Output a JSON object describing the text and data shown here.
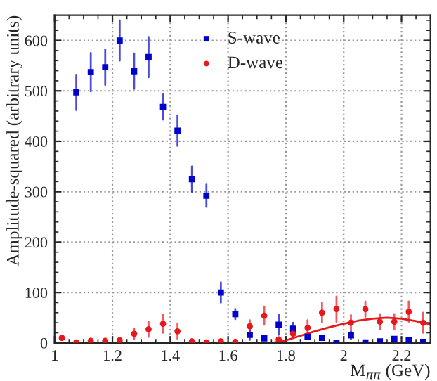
{
  "chart_data": {
    "type": "scatter",
    "xlabel": "M$_{ππ}$ (GeV)",
    "ylabel": "Amplitude-squared (arbitrary units)",
    "x": [
      1.025,
      1.075,
      1.125,
      1.175,
      1.225,
      1.275,
      1.325,
      1.375,
      1.425,
      1.475,
      1.525,
      1.575,
      1.625,
      1.675,
      1.725,
      1.775,
      1.825,
      1.875,
      1.925,
      1.975,
      2.025,
      2.075,
      2.125,
      2.175,
      2.225,
      2.275
    ],
    "series": [
      {
        "name": "S-wave",
        "color": "#0000cc",
        "marker": "square",
        "values": [
          null,
          497,
          537,
          547,
          600,
          539,
          567,
          468,
          421,
          325,
          292,
          100,
          57,
          16,
          9,
          36,
          28,
          12,
          10,
          0,
          15,
          1,
          3,
          8,
          6,
          2
        ],
        "errors": [
          null,
          35,
          38,
          35,
          40,
          35,
          40,
          25,
          30,
          25,
          22,
          20,
          10,
          10,
          null,
          20,
          12,
          null,
          null,
          null,
          8,
          null,
          null,
          null,
          null,
          null
        ]
      },
      {
        "name": "D-wave",
        "color": "#e8171b",
        "marker": "circle",
        "values": [
          10,
          1,
          4,
          4,
          5,
          18,
          27,
          38,
          23,
          3,
          1,
          3,
          2,
          33,
          54,
          7,
          18,
          30,
          60,
          67,
          40,
          67,
          42,
          42,
          62,
          40
        ],
        "errors": [
          null,
          null,
          null,
          null,
          null,
          10,
          15,
          18,
          15,
          null,
          null,
          null,
          null,
          12,
          18,
          null,
          null,
          15,
          20,
          25,
          15,
          15,
          15,
          15,
          20,
          20
        ]
      },
      {
        "type": "line",
        "color": "#e8171b",
        "marker": "none",
        "line_style": "solid",
        "x": [
          1.75,
          1.8,
          1.85,
          1.9,
          1.95,
          2.0,
          2.05,
          2.1,
          2.15,
          2.2,
          2.25,
          2.3
        ],
        "values": [
          0,
          5,
          14,
          23,
          31,
          38,
          44,
          48,
          50,
          48,
          43,
          37
        ]
      }
    ],
    "xlim": [
      1,
      2.3
    ],
    "xticks": [
      1,
      1.2,
      1.4,
      1.6,
      1.8,
      2,
      2.2
    ],
    "ylim": [
      0,
      650
    ],
    "yticks": [
      0,
      100,
      200,
      300,
      400,
      500,
      600
    ],
    "grid": true,
    "legend": "top right"
  }
}
